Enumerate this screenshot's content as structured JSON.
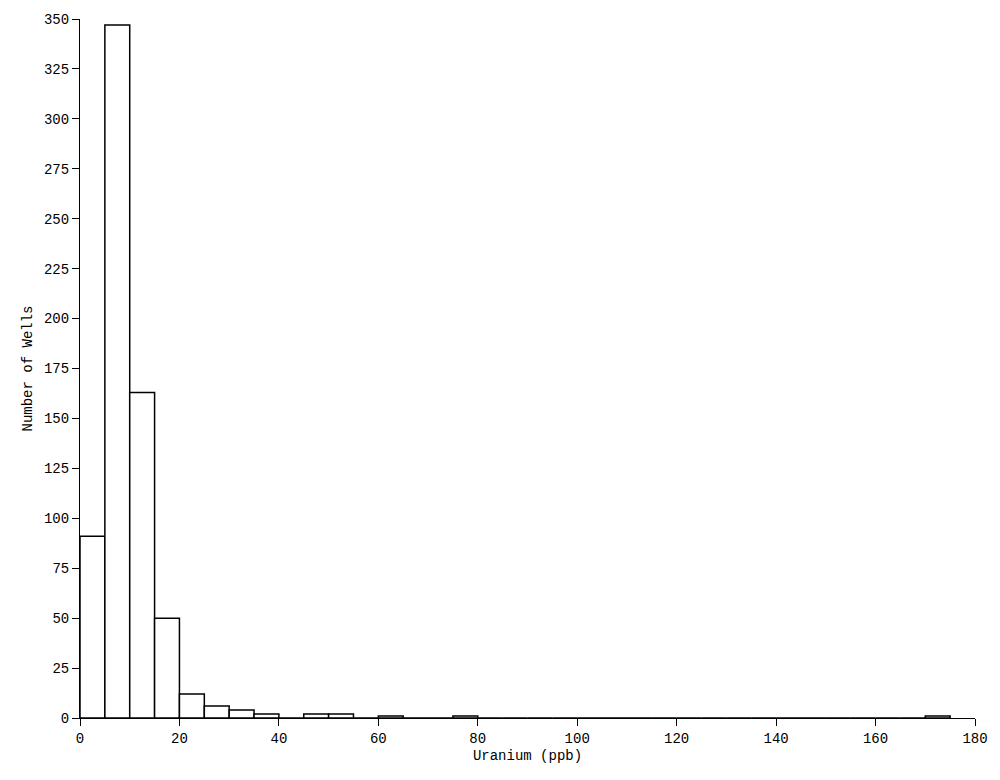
{
  "chart_data": {
    "type": "histogram",
    "x_label": "Uranium (ppb)",
    "y_label": "Number of Wells",
    "bins": [
      0,
      5,
      10,
      15,
      20,
      25,
      30,
      35,
      40,
      45,
      50,
      55,
      60,
      65,
      70,
      75,
      80,
      85,
      90,
      95,
      100,
      105,
      110,
      115,
      120,
      125,
      130,
      135,
      140,
      145,
      150,
      155,
      160,
      165,
      170,
      175
    ],
    "values": [
      91,
      347,
      163,
      50,
      12,
      6,
      4,
      2,
      0,
      2,
      2,
      0,
      1,
      0,
      0,
      1,
      0,
      0,
      0,
      0,
      0,
      0,
      0,
      0,
      0,
      0,
      0,
      0,
      0,
      0,
      0,
      0,
      0,
      0,
      1
    ],
    "color": "#ffffff",
    "xlim": [
      0,
      180
    ],
    "xticks": [
      0,
      20,
      40,
      60,
      80,
      100,
      120,
      140,
      160,
      180
    ],
    "ylim": [
      0,
      350
    ],
    "yticks": [
      0,
      25,
      50,
      75,
      100,
      125,
      150,
      175,
      200,
      225,
      250,
      275,
      300,
      325,
      350
    ],
    "grid": false
  }
}
